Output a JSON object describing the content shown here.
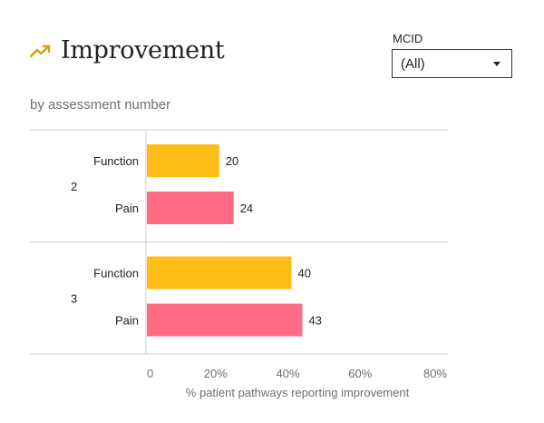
{
  "header": {
    "title": "Improvement",
    "subtitle": "by assessment number",
    "icon": "trending-up-icon",
    "icon_color": "#d4a00b"
  },
  "filter": {
    "label": "MCID",
    "selected": "(All)"
  },
  "chart_data": {
    "type": "bar",
    "orientation": "horizontal",
    "groups": [
      {
        "name": "2",
        "bars": [
          {
            "category": "Function",
            "value": 20
          },
          {
            "category": "Pain",
            "value": 24
          }
        ]
      },
      {
        "name": "3",
        "bars": [
          {
            "category": "Function",
            "value": 40
          },
          {
            "category": "Pain",
            "value": 43
          }
        ]
      }
    ],
    "colors": {
      "Function": "#fdbd16",
      "Pain": "#ff6b85"
    },
    "xlabel": "% patient pathways reporting improvement",
    "xlim": [
      0,
      80
    ],
    "xticks": [
      "0",
      "20%",
      "40%",
      "60%",
      "80%"
    ],
    "xtick_values": [
      0,
      20,
      40,
      60,
      80
    ]
  }
}
